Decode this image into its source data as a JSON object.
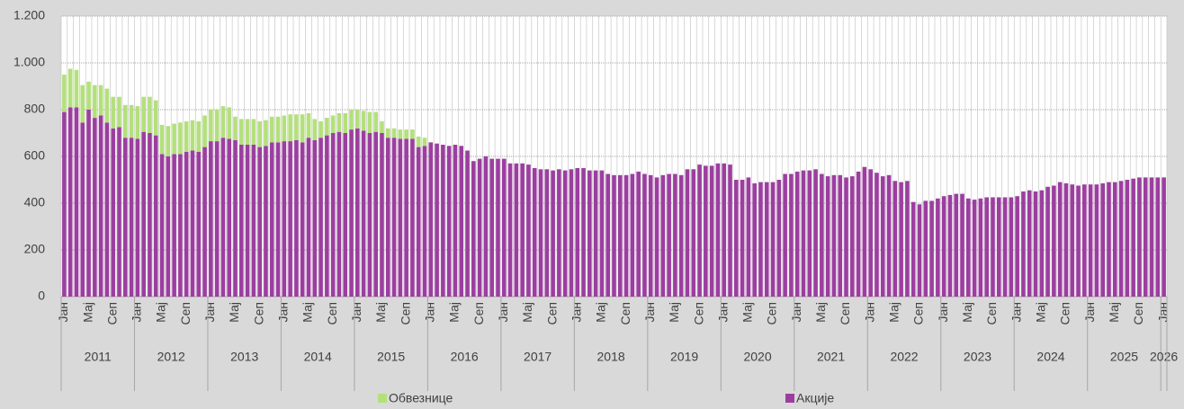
{
  "chart_data": {
    "type": "stacked_bar",
    "categories": [
      "Јан",
      null,
      null,
      null,
      "Мај",
      null,
      null,
      null,
      "Сеп",
      null,
      null,
      null,
      "Јан",
      null,
      null,
      null,
      "Мај",
      null,
      null,
      null,
      "Сеп",
      null,
      null,
      null,
      "Јан",
      null,
      null,
      null,
      "Мај",
      null,
      null,
      null,
      "Сеп",
      null,
      null,
      null,
      "Јан",
      null,
      null,
      null,
      "Мај",
      null,
      null,
      null,
      "Сеп",
      null,
      null,
      null,
      "Јан",
      null,
      null,
      null,
      "Мај",
      null,
      null,
      null,
      "Сеп",
      null,
      null,
      null,
      "Јан",
      null,
      null,
      null,
      "Мај",
      null,
      null,
      null,
      "Сеп",
      null,
      null,
      null,
      "Јан",
      null,
      null,
      null,
      "Мај",
      null,
      null,
      null,
      "Сеп",
      null,
      null,
      null,
      "Јан",
      null,
      null,
      null,
      "Мај",
      null,
      null,
      null,
      "Сеп",
      null,
      null,
      null,
      "Јан",
      null,
      null,
      null,
      "Мај",
      null,
      null,
      null,
      "Сеп",
      null,
      null,
      null,
      "Јан",
      null,
      null,
      null,
      "Мај",
      null,
      null,
      null,
      "Сеп",
      null,
      null,
      null,
      "Јан",
      null,
      null,
      null,
      "Мај",
      null,
      null,
      null,
      "Сеп",
      null,
      null,
      null,
      "Јан",
      null,
      null,
      null,
      "Мај",
      null,
      null,
      null,
      "Сеп",
      null,
      null,
      null,
      "Јан",
      null,
      null,
      null,
      "Мај",
      null,
      null,
      null,
      "Сеп",
      null,
      null,
      null,
      "Јан",
      null,
      null,
      null,
      "Мај",
      null,
      null,
      null,
      "Сеп",
      null,
      null,
      null,
      "Јан",
      null,
      null,
      null,
      "Мај",
      null,
      null,
      null,
      "Сеп",
      null,
      null,
      null,
      "Јан"
    ],
    "years": [
      "2011",
      "2012",
      "2013",
      "2014",
      "2015",
      "2016",
      "2017",
      "2018",
      "2019",
      "2020",
      "2021",
      "2022",
      "2023",
      "2024",
      "2025",
      "2026"
    ],
    "series": [
      {
        "name": "Обвезнице",
        "color": "#b4e07c",
        "values": [
          160,
          165,
          160,
          160,
          120,
          140,
          130,
          145,
          135,
          130,
          140,
          140,
          140,
          150,
          155,
          150,
          125,
          130,
          130,
          135,
          130,
          130,
          130,
          135,
          135,
          135,
          135,
          135,
          100,
          110,
          110,
          110,
          110,
          110,
          110,
          110,
          110,
          115,
          110,
          120,
          105,
          90,
          70,
          75,
          75,
          80,
          85,
          85,
          80,
          85,
          90,
          85,
          50,
          40,
          40,
          40,
          40,
          40,
          45,
          35,
          0,
          0,
          0,
          0,
          0,
          0,
          0,
          0,
          0,
          0,
          0,
          0,
          0,
          0,
          0,
          0,
          0,
          0,
          0,
          0,
          0,
          0,
          0,
          0,
          0,
          0,
          0,
          0,
          0,
          0,
          0,
          0,
          0,
          0,
          0,
          0,
          0,
          0,
          0,
          0,
          0,
          0,
          0,
          0,
          0,
          0,
          0,
          0,
          0,
          0,
          0,
          0,
          0,
          0,
          0,
          0,
          0,
          0,
          0,
          0,
          0,
          0,
          0,
          0,
          0,
          0,
          0,
          0,
          0,
          0,
          0,
          0,
          0,
          0,
          0,
          0,
          0,
          0,
          0,
          0,
          0,
          0,
          0,
          0,
          0,
          0,
          0,
          0,
          0,
          0,
          0,
          0,
          0,
          0,
          0,
          0,
          0,
          0,
          0,
          0,
          0,
          0,
          0,
          0,
          0,
          0,
          0,
          0,
          0,
          0,
          0,
          0,
          0,
          0,
          0,
          0,
          0,
          0,
          0,
          0,
          0
        ]
      },
      {
        "name": "Акције",
        "color": "#9c3ea0",
        "values": [
          790,
          810,
          810,
          745,
          800,
          765,
          775,
          745,
          720,
          725,
          680,
          680,
          675,
          705,
          700,
          690,
          610,
          600,
          610,
          610,
          620,
          625,
          620,
          640,
          665,
          665,
          680,
          675,
          670,
          650,
          650,
          650,
          640,
          645,
          660,
          660,
          665,
          665,
          670,
          660,
          680,
          670,
          680,
          690,
          700,
          705,
          700,
          715,
          720,
          710,
          700,
          705,
          700,
          680,
          680,
          675,
          675,
          675,
          640,
          645,
          660,
          655,
          650,
          645,
          650,
          645,
          625,
          580,
          590,
          600,
          590,
          590,
          590,
          570,
          570,
          570,
          565,
          550,
          545,
          545,
          540,
          545,
          540,
          545,
          550,
          550,
          540,
          540,
          540,
          525,
          520,
          520,
          520,
          525,
          535,
          525,
          520,
          510,
          520,
          525,
          525,
          520,
          545,
          545,
          565,
          560,
          560,
          570,
          570,
          565,
          500,
          500,
          510,
          485,
          490,
          490,
          490,
          500,
          525,
          525,
          535,
          540,
          540,
          545,
          525,
          515,
          520,
          520,
          510,
          515,
          535,
          555,
          545,
          530,
          515,
          520,
          495,
          490,
          495,
          405,
          395,
          410,
          410,
          420,
          430,
          435,
          440,
          440,
          420,
          415,
          420,
          425,
          425,
          425,
          425,
          425,
          430,
          450,
          455,
          450,
          455,
          470,
          475,
          490,
          485,
          480,
          475,
          480,
          480,
          480,
          485,
          490,
          490,
          495,
          500,
          505,
          510,
          510,
          510,
          510,
          510
        ]
      }
    ],
    "ylim": [
      0,
      1200
    ],
    "yticks": [
      0,
      200,
      400,
      600,
      800,
      {
        "value": 1000,
        "label": "1.000"
      },
      {
        "value": 1200,
        "label": "1.200"
      }
    ],
    "grid": true,
    "legend": "bottom"
  }
}
